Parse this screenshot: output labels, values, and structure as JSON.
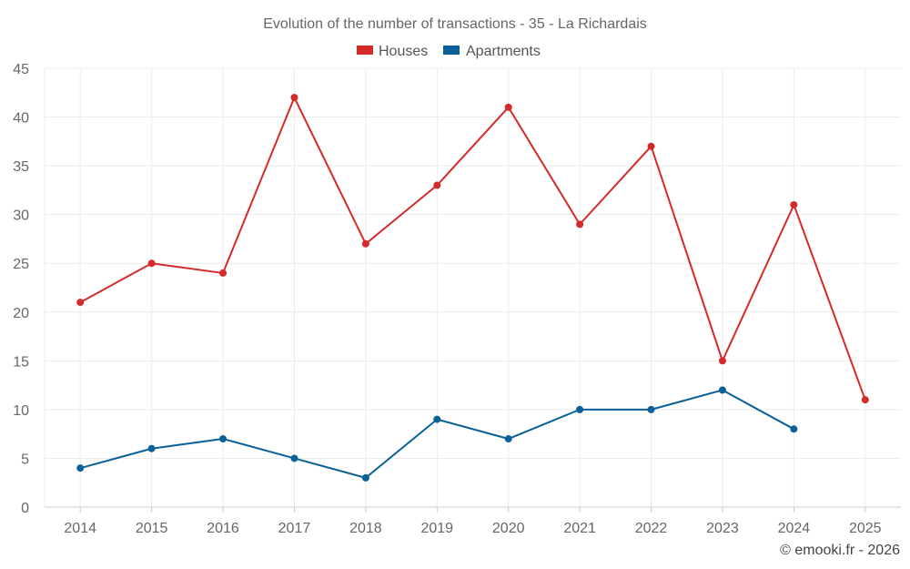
{
  "chart_data": {
    "type": "line",
    "title": "Evolution of the number of transactions - 35 - La Richardais",
    "categories": [
      "2014",
      "2015",
      "2016",
      "2017",
      "2018",
      "2019",
      "2020",
      "2021",
      "2022",
      "2023",
      "2024",
      "2025"
    ],
    "series": [
      {
        "name": "Houses",
        "color": "#d42a2a",
        "values": [
          21,
          25,
          24,
          42,
          27,
          33,
          41,
          29,
          37,
          15,
          31,
          11
        ]
      },
      {
        "name": "Apartments",
        "color": "#0a6199",
        "values": [
          4,
          6,
          7,
          5,
          3,
          9,
          7,
          10,
          10,
          12,
          8,
          null
        ]
      }
    ],
    "ylim": [
      0,
      45
    ],
    "yticks": [
      "0",
      "5",
      "10",
      "15",
      "20",
      "25",
      "30",
      "35",
      "40",
      "45"
    ],
    "xlabel": "",
    "ylabel": "",
    "grid": true,
    "legend": "top-center"
  },
  "credit": "© emooki.fr - 2026",
  "colors": {
    "grid": "#ececec",
    "axis": "#cccccc",
    "text": "#666666"
  }
}
